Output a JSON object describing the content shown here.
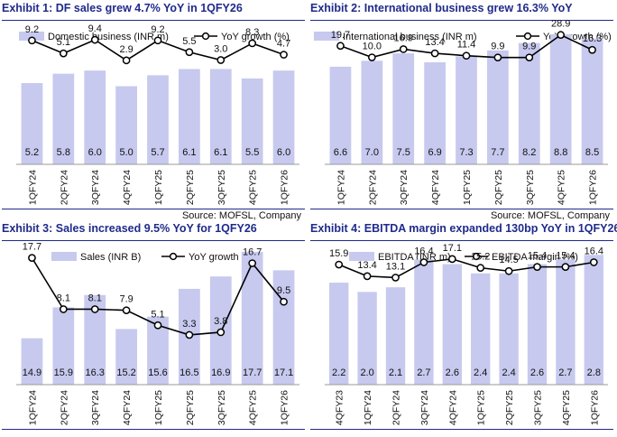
{
  "exhibits": [
    {
      "title": "Exhibit 1: DF sales grew 4.7% YoY in 1QFY26",
      "source": "Source: MOFSL, Company"
    },
    {
      "title": "Exhibit 2: International business grew 16.3% YoY",
      "source": "Source: MOFSL, Company"
    },
    {
      "title": "Exhibit 3: Sales increased 9.5% YoY for 1QFY26",
      "source": ""
    },
    {
      "title": "Exhibit 4: EBITDA margin expanded 130bp YoY in 1QFY26",
      "source": ""
    }
  ],
  "colors": {
    "bar": "#c7c9ef",
    "line": "#000000",
    "title": "#1f2a8a"
  },
  "chart_data": [
    {
      "type": "bar+line",
      "categories": [
        "1QFY24",
        "2QFY24",
        "3QFY24",
        "4QFY24",
        "1QFY25",
        "2QFY25",
        "3QFY25",
        "4QFY25",
        "1QFY26"
      ],
      "series": [
        {
          "name": "Domestic business (INR m)",
          "type": "bar",
          "values": [
            5.2,
            5.8,
            6.0,
            5.0,
            5.7,
            6.1,
            6.1,
            5.5,
            6.0
          ]
        },
        {
          "name": "YoY growth (%)",
          "type": "line",
          "values": [
            9.2,
            5.1,
            9.4,
            2.9,
            9.2,
            5.5,
            3.0,
            8.3,
            4.7
          ]
        }
      ],
      "bar_range": [
        0,
        8.9
      ],
      "line_range": [
        -30,
        14
      ],
      "legend": "top",
      "grid": false
    },
    {
      "type": "bar+line",
      "categories": [
        "1QFY24",
        "2QFY24",
        "3QFY24",
        "4QFY24",
        "1QFY25",
        "2QFY25",
        "3QFY25",
        "4QFY25",
        "1QFY26"
      ],
      "series": [
        {
          "name": "International business (INR m)",
          "type": "bar",
          "values": [
            6.6,
            7.0,
            7.5,
            6.9,
            7.3,
            7.7,
            8.2,
            8.8,
            8.5
          ]
        },
        {
          "name": "YoY growth (%)",
          "type": "line",
          "values": [
            19.7,
            10.0,
            16.9,
            13.4,
            11.4,
            9.9,
            9.9,
            28.9,
            16.3
          ]
        }
      ],
      "bar_range": [
        0,
        9.4
      ],
      "line_range": [
        -80,
        37
      ],
      "legend": "top",
      "grid": false
    },
    {
      "type": "bar+line",
      "categories": [
        "1QFY24",
        "2QFY24",
        "3QFY24",
        "4QFY24",
        "1QFY25",
        "2QFY25",
        "3QFY25",
        "4QFY25",
        "1QFY26"
      ],
      "series": [
        {
          "name": "Sales (INR B)",
          "type": "bar",
          "values": [
            14.9,
            15.9,
            16.3,
            15.2,
            15.6,
            16.5,
            16.9,
            17.7,
            17.1
          ]
        },
        {
          "name": "YoY growth (%)",
          "type": "line",
          "values": [
            17.7,
            8.1,
            8.1,
            7.9,
            5.1,
            3.3,
            3.8,
            16.7,
            9.5
          ]
        }
      ],
      "bar_range": [
        13.4,
        17.9
      ],
      "line_range": [
        -6,
        20
      ],
      "legend": "top",
      "grid": false
    },
    {
      "type": "bar+line",
      "categories": [
        "4QFY23",
        "1QFY24",
        "2QFY24",
        "3QFY24",
        "4QFY24",
        "1QFY25",
        "2QFY25",
        "3QFY25",
        "4QFY25",
        "1QFY26"
      ],
      "series": [
        {
          "name": "EBITDA (INR m)",
          "type": "bar",
          "values": [
            2.2,
            2.0,
            2.1,
            2.7,
            2.6,
            2.4,
            2.4,
            2.6,
            2.7,
            2.8
          ]
        },
        {
          "name": "EBITDA margin (%)",
          "type": "line",
          "values": [
            15.9,
            13.4,
            13.1,
            16.4,
            17.1,
            15.2,
            14.5,
            15.4,
            15.4,
            16.4
          ]
        }
      ],
      "bar_range": [
        0,
        3.0
      ],
      "line_range": [
        -10,
        20
      ],
      "legend": "top",
      "grid": false
    }
  ]
}
